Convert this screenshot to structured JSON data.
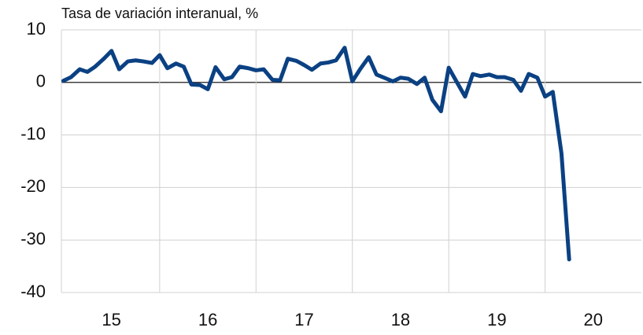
{
  "chart_data": {
    "type": "line",
    "title": "Tasa de variación interanual, %",
    "x": [
      2015.0,
      2015.08,
      2015.17,
      2015.25,
      2015.33,
      2015.42,
      2015.5,
      2015.58,
      2015.67,
      2015.75,
      2015.83,
      2015.92,
      2016.0,
      2016.08,
      2016.17,
      2016.25,
      2016.33,
      2016.42,
      2016.5,
      2016.58,
      2016.67,
      2016.75,
      2016.83,
      2016.92,
      2017.0,
      2017.08,
      2017.17,
      2017.25,
      2017.33,
      2017.42,
      2017.5,
      2017.58,
      2017.67,
      2017.75,
      2017.83,
      2017.92,
      2018.0,
      2018.08,
      2018.17,
      2018.25,
      2018.33,
      2018.42,
      2018.5,
      2018.58,
      2018.67,
      2018.75,
      2018.83,
      2018.92,
      2019.0,
      2019.08,
      2019.17,
      2019.25,
      2019.33,
      2019.42,
      2019.5,
      2019.58,
      2019.67,
      2019.75,
      2019.83,
      2019.92,
      2020.0,
      2020.08,
      2020.17,
      2020.25
    ],
    "series": [
      {
        "name": "Tasa de variación interanual",
        "color": "#0b4183",
        "values": [
          0.3,
          1,
          2.5,
          2,
          3,
          4.5,
          6,
          2.5,
          4,
          4.2,
          4,
          3.7,
          5.2,
          2.7,
          3.6,
          3,
          -0.4,
          -0.5,
          -1.3,
          2.9,
          0.6,
          1,
          3,
          2.7,
          2.3,
          2.5,
          0.5,
          0.4,
          4.5,
          4.1,
          3.3,
          2.4,
          3.6,
          3.8,
          4.2,
          6.6,
          0.2,
          2.5,
          4.8,
          1.5,
          0.9,
          0.2,
          0.9,
          0.7,
          -0.3,
          0.9,
          -3.3,
          -5.5,
          2.8,
          0.2,
          -2.7,
          1.6,
          1.2,
          1.5,
          1,
          1,
          0.5,
          -1.6,
          1.6,
          0.9,
          -2.7,
          -1.8,
          -13.5,
          -33.7
        ]
      }
    ],
    "xlim": [
      2014.98,
      2021.0
    ],
    "xticks": [
      {
        "value": 2015.5,
        "label": "15"
      },
      {
        "value": 2016.5,
        "label": "16"
      },
      {
        "value": 2017.5,
        "label": "17"
      },
      {
        "value": 2018.5,
        "label": "18"
      },
      {
        "value": 2019.5,
        "label": "19"
      },
      {
        "value": 2020.5,
        "label": "20"
      }
    ],
    "xgrid": [
      2016,
      2017,
      2018,
      2019,
      2020
    ],
    "ylim": [
      -40,
      10
    ],
    "yticks": [
      10,
      0,
      -10,
      -20,
      -30,
      -40
    ],
    "grid": true
  }
}
